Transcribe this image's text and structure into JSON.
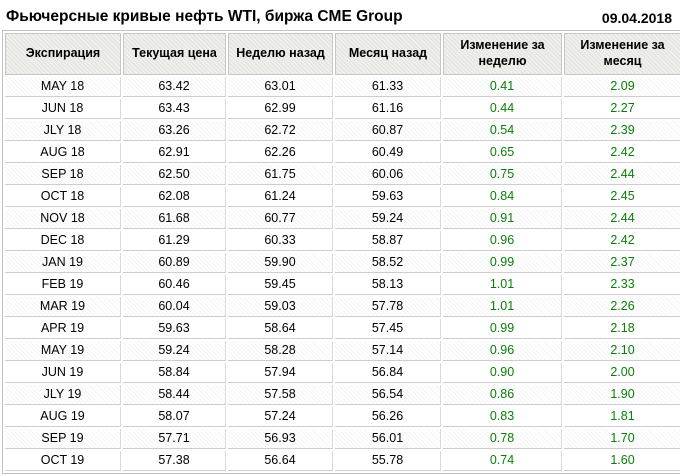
{
  "header": {
    "title": "Фьючерсные кривые нефть WTI, биржа CME Group",
    "date": "09.04.2018"
  },
  "colors": {
    "positive_change": "#0b7d0b",
    "header_background": "#e6e6e2",
    "table_border": "#c2c2c2",
    "row_line": "#cdcdcd"
  },
  "chart_data": {
    "type": "table",
    "title": "Фьючерсные кривые нефть WTI, биржа CME Group",
    "date": "09.04.2018",
    "columns": [
      "Экспирация",
      "Текущая цена",
      "Неделю назад",
      "Месяц назад",
      "Изменение за неделю",
      "Изменение за месяц"
    ],
    "rows": [
      [
        "MAY 18",
        "63.42",
        "63.01",
        "61.33",
        "0.41",
        "2.09"
      ],
      [
        "JUN 18",
        "63.43",
        "62.99",
        "61.16",
        "0.44",
        "2.27"
      ],
      [
        "JLY 18",
        "63.26",
        "62.72",
        "60.87",
        "0.54",
        "2.39"
      ],
      [
        "AUG 18",
        "62.91",
        "62.26",
        "60.49",
        "0.65",
        "2.42"
      ],
      [
        "SEP 18",
        "62.50",
        "61.75",
        "60.06",
        "0.75",
        "2.44"
      ],
      [
        "OCT 18",
        "62.08",
        "61.24",
        "59.63",
        "0.84",
        "2.45"
      ],
      [
        "NOV 18",
        "61.68",
        "60.77",
        "59.24",
        "0.91",
        "2.44"
      ],
      [
        "DEC 18",
        "61.29",
        "60.33",
        "58.87",
        "0.96",
        "2.42"
      ],
      [
        "JAN 19",
        "60.89",
        "59.90",
        "58.52",
        "0.99",
        "2.37"
      ],
      [
        "FEB 19",
        "60.46",
        "59.45",
        "58.13",
        "1.01",
        "2.33"
      ],
      [
        "MAR 19",
        "60.04",
        "59.03",
        "57.78",
        "1.01",
        "2.26"
      ],
      [
        "APR 19",
        "59.63",
        "58.64",
        "57.45",
        "0.99",
        "2.18"
      ],
      [
        "MAY 19",
        "59.24",
        "58.28",
        "57.14",
        "0.96",
        "2.10"
      ],
      [
        "JUN 19",
        "58.84",
        "57.94",
        "56.84",
        "0.90",
        "2.00"
      ],
      [
        "JLY 19",
        "58.44",
        "57.58",
        "56.54",
        "0.86",
        "1.90"
      ],
      [
        "AUG 19",
        "58.07",
        "57.24",
        "56.26",
        "0.83",
        "1.81"
      ],
      [
        "SEP 19",
        "57.71",
        "56.93",
        "56.01",
        "0.78",
        "1.70"
      ],
      [
        "OCT 19",
        "57.38",
        "56.64",
        "55.78",
        "0.74",
        "1.60"
      ]
    ]
  }
}
